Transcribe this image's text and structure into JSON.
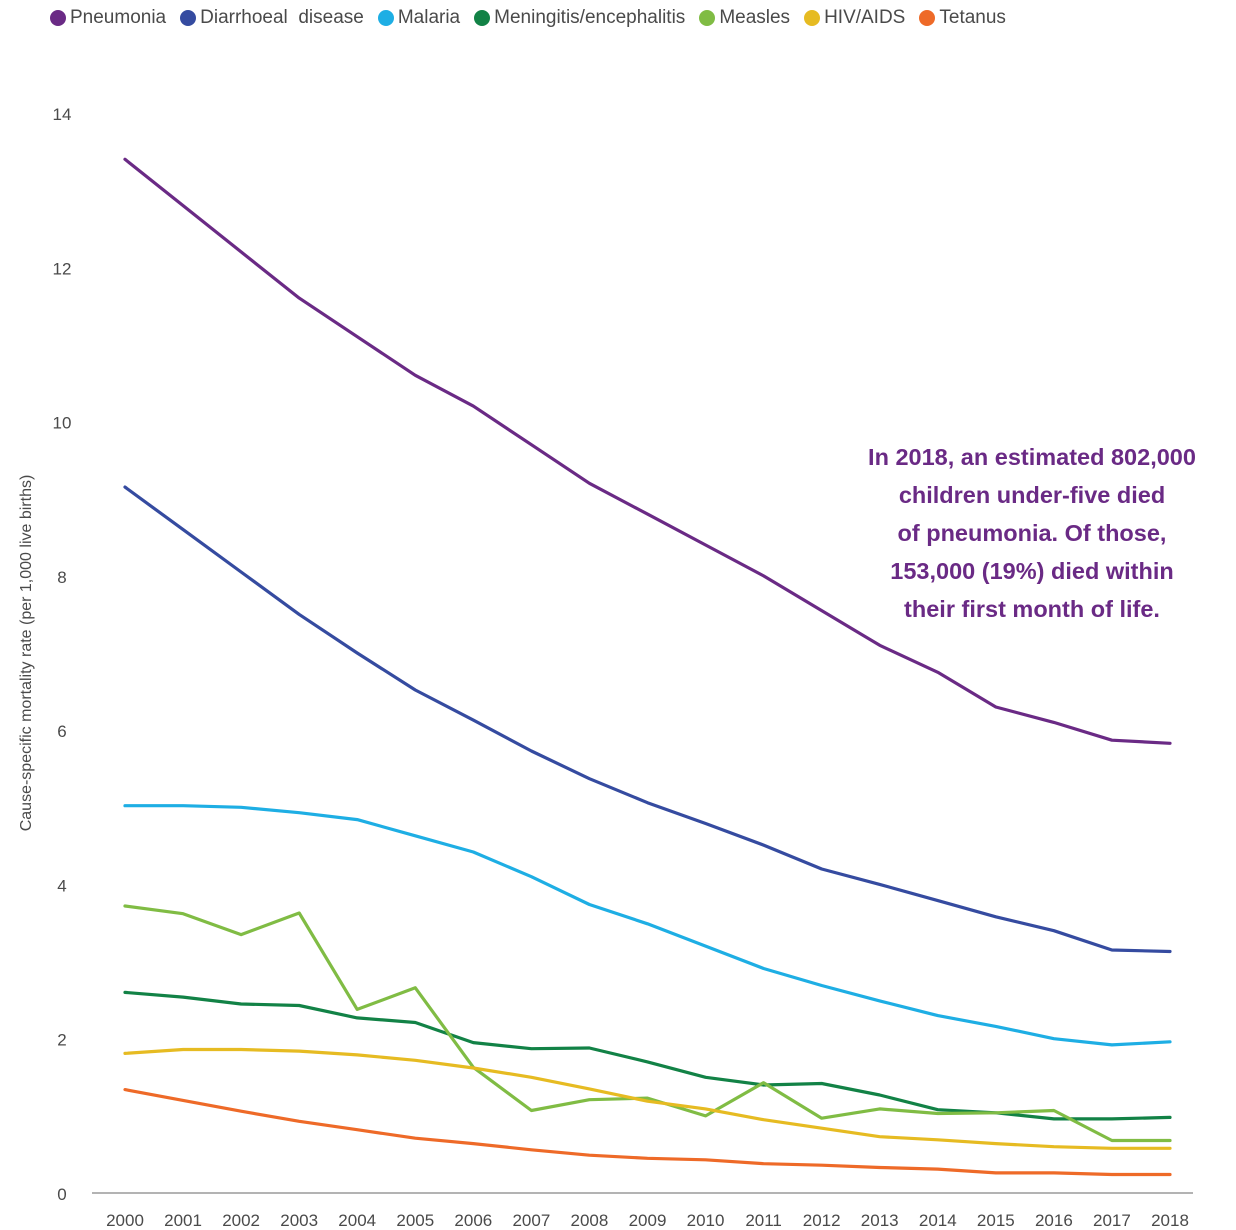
{
  "chart_data": {
    "type": "line",
    "title": "",
    "xlabel": "",
    "ylabel": "Cause-specific mortality rate (per 1,000 live births)",
    "ylim": [
      0,
      14
    ],
    "yticks": [
      "0",
      "2",
      "4",
      "6",
      "8",
      "10",
      "12",
      "14"
    ],
    "grid": false,
    "legend_position": "top",
    "categories": [
      "2000",
      "2001",
      "2002",
      "2003",
      "2004",
      "2005",
      "2006",
      "2007",
      "2008",
      "2009",
      "2010",
      "2011",
      "2012",
      "2013",
      "2014",
      "2015",
      "2016",
      "2017",
      "2018"
    ],
    "series": [
      {
        "name": "Pneumonia",
        "color": "#6a2a85",
        "values": [
          13.4,
          12.8,
          12.2,
          11.6,
          11.1,
          10.6,
          10.2,
          9.7,
          9.2,
          8.8,
          8.4,
          8.0,
          7.55,
          7.1,
          6.75,
          6.3,
          6.1,
          5.87,
          5.83
        ]
      },
      {
        "name": "Diarrhoeal  disease",
        "color": "#354ba0",
        "values": [
          9.15,
          8.6,
          8.05,
          7.5,
          7.0,
          6.52,
          6.13,
          5.73,
          5.37,
          5.06,
          4.79,
          4.51,
          4.2,
          4.0,
          3.79,
          3.58,
          3.4,
          3.15,
          3.13
        ]
      },
      {
        "name": "Malaria",
        "color": "#1eaee4",
        "values": [
          5.02,
          5.02,
          5.0,
          4.93,
          4.84,
          4.63,
          4.42,
          4.1,
          3.74,
          3.49,
          3.2,
          2.91,
          2.69,
          2.49,
          2.3,
          2.16,
          2.0,
          1.92,
          1.96
        ]
      },
      {
        "name": "Meningitis/encephalitis",
        "color": "#128246",
        "values": [
          2.6,
          2.54,
          2.45,
          2.43,
          2.27,
          2.21,
          1.95,
          1.87,
          1.88,
          1.7,
          1.5,
          1.4,
          1.42,
          1.27,
          1.08,
          1.04,
          0.96,
          0.96,
          0.98
        ]
      },
      {
        "name": "Measles",
        "color": "#80bc44",
        "values": [
          3.72,
          3.62,
          3.35,
          3.63,
          2.38,
          2.66,
          1.63,
          1.07,
          1.21,
          1.23,
          1.0,
          1.43,
          0.97,
          1.09,
          1.03,
          1.04,
          1.07,
          0.68,
          0.68
        ]
      },
      {
        "name": "HIV/AIDS",
        "color": "#e6bb22",
        "values": [
          1.81,
          1.86,
          1.86,
          1.84,
          1.79,
          1.72,
          1.62,
          1.5,
          1.35,
          1.19,
          1.09,
          0.95,
          0.84,
          0.73,
          0.69,
          0.64,
          0.6,
          0.58,
          0.58
        ]
      },
      {
        "name": "Tetanus",
        "color": "#ee6a28",
        "values": [
          1.34,
          1.2,
          1.06,
          0.93,
          0.82,
          0.71,
          0.64,
          0.56,
          0.49,
          0.45,
          0.43,
          0.38,
          0.36,
          0.33,
          0.31,
          0.26,
          0.26,
          0.24,
          0.24
        ]
      }
    ],
    "annotations": [
      {
        "text": "In 2018, an estimated 802,000\nchildren under-five died\nof pneumonia. Of those,\n153,000 (19%) died within\ntheir first month of life.",
        "color": "#6a2a85"
      }
    ]
  }
}
